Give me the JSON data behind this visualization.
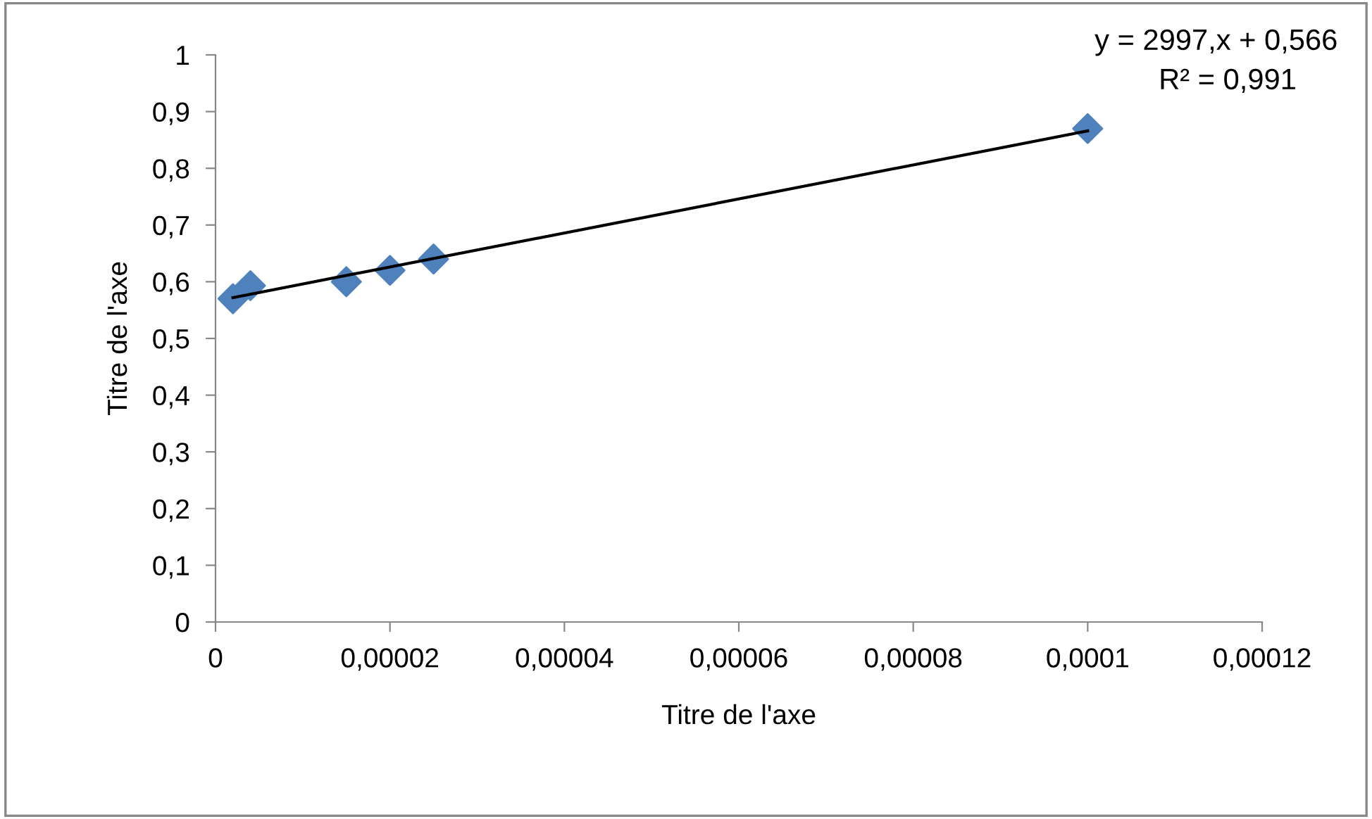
{
  "chart_data": {
    "type": "scatter",
    "xlabel": "Titre de l'axe",
    "ylabel": "Titre de l'axe",
    "series": [
      {
        "color": "#4f81bd",
        "marker": "diamond",
        "x": [
          2e-06,
          4e-06,
          1.5e-05,
          2e-05,
          2.5e-05,
          0.0001
        ],
        "values": [
          0.57,
          0.593,
          0.6,
          0.62,
          0.64,
          0.87
        ]
      },
      {
        "type": "line",
        "color": "#000000",
        "marker": "none",
        "line_style": "solid",
        "x": [
          2e-06,
          0.0001
        ],
        "values": [
          0.572,
          0.866
        ]
      }
    ],
    "xlim": [
      0,
      0.00012
    ],
    "ylim": [
      0,
      1
    ],
    "xticks": [
      0,
      {
        "value": 2e-05,
        "label": "0,00002"
      },
      {
        "value": 4e-05,
        "label": "0,00004"
      },
      {
        "value": 6e-05,
        "label": "0,00006"
      },
      {
        "value": 8e-05,
        "label": "0,00008"
      },
      {
        "value": 0.0001,
        "label": "0,0001"
      },
      {
        "value": 0.00012,
        "label": "0,00012"
      }
    ],
    "yticks": [
      0,
      {
        "value": 0.1,
        "label": "0,1"
      },
      {
        "value": 0.2,
        "label": "0,2"
      },
      {
        "value": 0.3,
        "label": "0,3"
      },
      {
        "value": 0.4,
        "label": "0,4"
      },
      {
        "value": 0.5,
        "label": "0,5"
      },
      {
        "value": 0.6,
        "label": "0,6"
      },
      {
        "value": 0.7,
        "label": "0,7"
      },
      {
        "value": 0.8,
        "label": "0,8"
      },
      {
        "value": 0.9,
        "label": "0,9"
      },
      1
    ],
    "annotations": [
      "y = 2997,x + 0,566",
      "R² = 0,991"
    ],
    "grid": false,
    "legend": false
  }
}
